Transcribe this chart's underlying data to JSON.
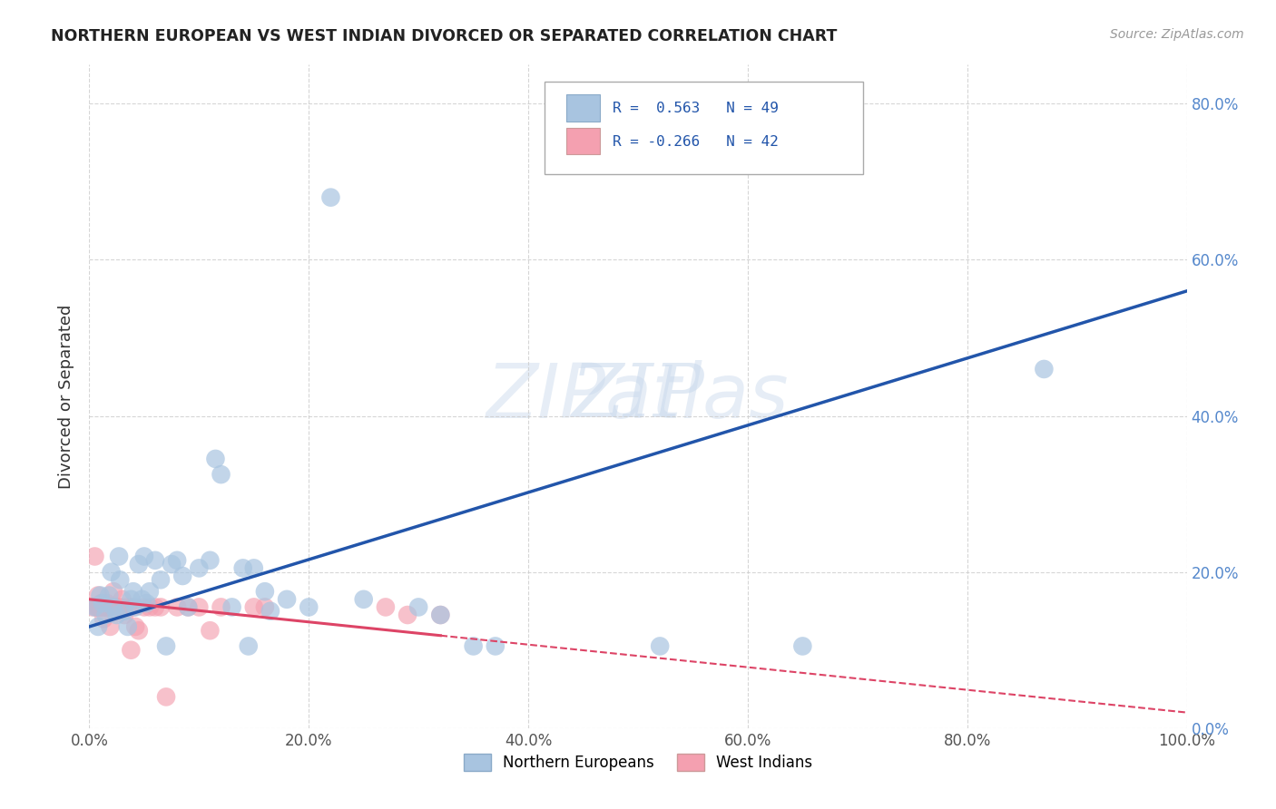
{
  "title": "NORTHERN EUROPEAN VS WEST INDIAN DIVORCED OR SEPARATED CORRELATION CHART",
  "source": "Source: ZipAtlas.com",
  "ylabel": "Divorced or Separated",
  "legend_label1": "Northern Europeans",
  "legend_label2": "West Indians",
  "legend_r1": "R =  0.563",
  "legend_n1": "N = 49",
  "legend_r2": "R = -0.266",
  "legend_n2": "N = 42",
  "color_blue": "#A8C4E0",
  "color_pink": "#F4A0B0",
  "color_line_blue": "#2255AA",
  "color_line_pink": "#DD4466",
  "watermark_zip": "ZIP",
  "watermark_atlas": "atlas",
  "blue_points": [
    [
      0.005,
      0.155
    ],
    [
      0.008,
      0.13
    ],
    [
      0.01,
      0.17
    ],
    [
      0.012,
      0.16
    ],
    [
      0.015,
      0.145
    ],
    [
      0.018,
      0.17
    ],
    [
      0.02,
      0.2
    ],
    [
      0.022,
      0.155
    ],
    [
      0.025,
      0.145
    ],
    [
      0.027,
      0.22
    ],
    [
      0.028,
      0.19
    ],
    [
      0.032,
      0.15
    ],
    [
      0.035,
      0.13
    ],
    [
      0.038,
      0.165
    ],
    [
      0.04,
      0.175
    ],
    [
      0.042,
      0.155
    ],
    [
      0.045,
      0.21
    ],
    [
      0.048,
      0.165
    ],
    [
      0.05,
      0.22
    ],
    [
      0.052,
      0.16
    ],
    [
      0.055,
      0.175
    ],
    [
      0.06,
      0.215
    ],
    [
      0.065,
      0.19
    ],
    [
      0.07,
      0.105
    ],
    [
      0.075,
      0.21
    ],
    [
      0.08,
      0.215
    ],
    [
      0.085,
      0.195
    ],
    [
      0.09,
      0.155
    ],
    [
      0.1,
      0.205
    ],
    [
      0.11,
      0.215
    ],
    [
      0.115,
      0.345
    ],
    [
      0.12,
      0.325
    ],
    [
      0.13,
      0.155
    ],
    [
      0.14,
      0.205
    ],
    [
      0.145,
      0.105
    ],
    [
      0.15,
      0.205
    ],
    [
      0.16,
      0.175
    ],
    [
      0.165,
      0.15
    ],
    [
      0.18,
      0.165
    ],
    [
      0.2,
      0.155
    ],
    [
      0.22,
      0.68
    ],
    [
      0.25,
      0.165
    ],
    [
      0.3,
      0.155
    ],
    [
      0.32,
      0.145
    ],
    [
      0.35,
      0.105
    ],
    [
      0.37,
      0.105
    ],
    [
      0.52,
      0.105
    ],
    [
      0.65,
      0.105
    ],
    [
      0.87,
      0.46
    ]
  ],
  "pink_points": [
    [
      0.003,
      0.155
    ],
    [
      0.005,
      0.22
    ],
    [
      0.006,
      0.155
    ],
    [
      0.007,
      0.155
    ],
    [
      0.008,
      0.17
    ],
    [
      0.009,
      0.155
    ],
    [
      0.01,
      0.155
    ],
    [
      0.011,
      0.16
    ],
    [
      0.012,
      0.155
    ],
    [
      0.013,
      0.14
    ],
    [
      0.014,
      0.155
    ],
    [
      0.015,
      0.155
    ],
    [
      0.016,
      0.16
    ],
    [
      0.017,
      0.155
    ],
    [
      0.018,
      0.155
    ],
    [
      0.019,
      0.13
    ],
    [
      0.02,
      0.155
    ],
    [
      0.022,
      0.175
    ],
    [
      0.025,
      0.155
    ],
    [
      0.028,
      0.155
    ],
    [
      0.03,
      0.165
    ],
    [
      0.032,
      0.145
    ],
    [
      0.035,
      0.155
    ],
    [
      0.038,
      0.1
    ],
    [
      0.04,
      0.155
    ],
    [
      0.042,
      0.13
    ],
    [
      0.045,
      0.125
    ],
    [
      0.05,
      0.155
    ],
    [
      0.055,
      0.155
    ],
    [
      0.06,
      0.155
    ],
    [
      0.065,
      0.155
    ],
    [
      0.07,
      0.04
    ],
    [
      0.08,
      0.155
    ],
    [
      0.09,
      0.155
    ],
    [
      0.1,
      0.155
    ],
    [
      0.11,
      0.125
    ],
    [
      0.12,
      0.155
    ],
    [
      0.15,
      0.155
    ],
    [
      0.16,
      0.155
    ],
    [
      0.27,
      0.155
    ],
    [
      0.29,
      0.145
    ],
    [
      0.32,
      0.145
    ]
  ],
  "xlim": [
    0.0,
    1.0
  ],
  "ylim": [
    0.0,
    0.85
  ],
  "xticks": [
    0.0,
    0.2,
    0.4,
    0.6,
    0.8,
    1.0
  ],
  "yticks": [
    0.0,
    0.2,
    0.4,
    0.6,
    0.8
  ],
  "blue_line_x": [
    0.0,
    1.0
  ],
  "blue_line_y": [
    0.13,
    0.56
  ],
  "pink_line_x": [
    0.0,
    1.0
  ],
  "pink_line_y": [
    0.165,
    0.02
  ]
}
